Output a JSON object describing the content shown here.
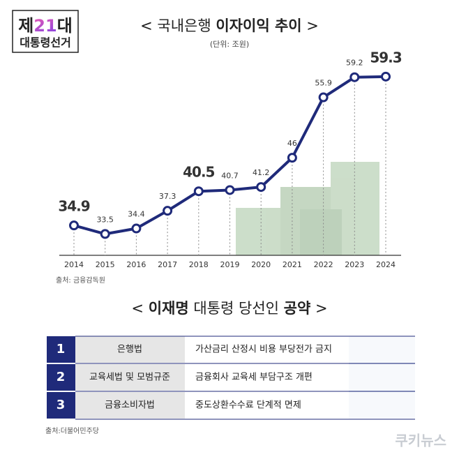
{
  "logo": {
    "line1_a": "제",
    "line1_num": "21",
    "line1_b": "대",
    "line2": "대통령선거"
  },
  "chart_data": {
    "type": "line",
    "title_open": "<",
    "title": "국내은행",
    "title_bold": "이자이익 추이",
    "title_close": ">",
    "subtitle": "(단위: 조원)",
    "categories": [
      "2014",
      "2015",
      "2016",
      "2017",
      "2018",
      "2019",
      "2020",
      "2021",
      "2022",
      "2023",
      "2024"
    ],
    "values": [
      34.9,
      33.5,
      34.4,
      37.3,
      40.5,
      40.7,
      41.2,
      46,
      55.9,
      59.2,
      59.3
    ],
    "highlighted": [
      true,
      false,
      false,
      false,
      true,
      false,
      false,
      false,
      false,
      false,
      true
    ],
    "color": "#1f2a7a",
    "ylim": [
      30,
      65
    ],
    "source": "출처: 금융감독원"
  },
  "pledges": {
    "title_open": "<",
    "title_bold": "이재명",
    "title": "대통령 당선인",
    "title_bold2": "공약",
    "title_close": ">",
    "rows": [
      [
        "1",
        "은행법",
        "가산금리 산정시 비용 부당전가 금지"
      ],
      [
        "2",
        "교육세법 및 모범규준",
        "금융회사 교육세 부담구조 개편"
      ],
      [
        "3",
        "금융소비자법",
        "중도상환수수료 단계적 면제"
      ]
    ],
    "source": "출처:더불어민주당"
  },
  "watermark": "쿠키뉴스"
}
